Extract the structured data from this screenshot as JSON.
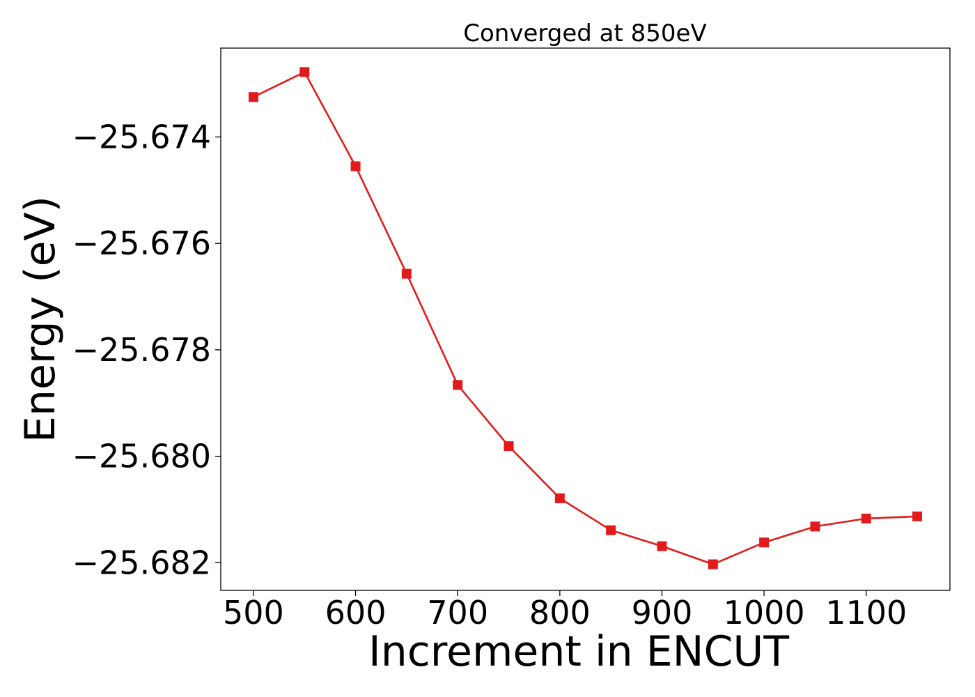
{
  "chart_data": {
    "type": "line",
    "title": "Converged at 850eV",
    "xlabel": "Increment in ENCUT",
    "ylabel": "Energy (eV)",
    "x": [
      500,
      550,
      600,
      650,
      700,
      750,
      800,
      850,
      900,
      950,
      1000,
      1050,
      1100,
      1150
    ],
    "series": [
      {
        "values": [
          -25.67325,
          -25.67278,
          -25.67455,
          -25.67657,
          -25.67866,
          -25.67981,
          -25.68079,
          -25.68139,
          -25.68169,
          -25.68203,
          -25.68162,
          -25.68132,
          -25.68117,
          -25.68113
        ],
        "color": "#e31a1c",
        "marker": "square"
      }
    ],
    "xlim": [
      468,
      1182
    ],
    "ylim": [
      -25.68252,
      -25.67233
    ],
    "xticks": [
      500,
      600,
      700,
      800,
      900,
      1000,
      1100
    ],
    "xtick_labels": [
      "500",
      "600",
      "700",
      "800",
      "900",
      "1000",
      "1100"
    ],
    "yticks": [
      -25.674,
      -25.676,
      -25.678,
      -25.68,
      -25.682
    ],
    "ytick_labels": [
      "−25.674",
      "−25.676",
      "−25.678",
      "−25.680",
      "−25.682"
    ],
    "grid": false,
    "legend": "none"
  }
}
